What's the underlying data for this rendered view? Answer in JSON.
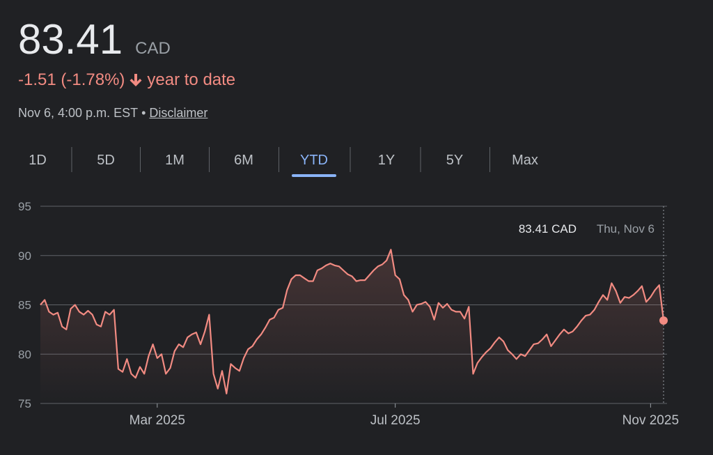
{
  "header": {
    "price": "83.41",
    "currency": "CAD",
    "change": "-1.51 (-1.78%)",
    "period": "year to date",
    "timestamp": "Nov 6, 4:00 p.m. EST",
    "separator": "•",
    "disclaimer": "Disclaimer"
  },
  "tabs": {
    "items": [
      "1D",
      "5D",
      "1M",
      "6M",
      "YTD",
      "1Y",
      "5Y",
      "Max"
    ],
    "active": 4
  },
  "chart_data": {
    "type": "line",
    "color": "#f28b82",
    "values": [
      85,
      85.5,
      84.3,
      84,
      84.2,
      82.8,
      82.5,
      84.6,
      85,
      84.3,
      84,
      84.4,
      84,
      83,
      82.8,
      84.3,
      84,
      84.5,
      78.5,
      78.2,
      79.5,
      78,
      77.6,
      78.7,
      78,
      79.8,
      81,
      79.6,
      80,
      78,
      78.6,
      80.3,
      81,
      80.7,
      81.7,
      82,
      82.2,
      81,
      82.3,
      84,
      78,
      76.5,
      78.3,
      76,
      79,
      78.6,
      78.3,
      79.6,
      80.5,
      80.8,
      81.5,
      82,
      82.7,
      83.5,
      83.7,
      84.5,
      84.7,
      86.5,
      87.6,
      88,
      88,
      87.7,
      87.4,
      87.4,
      88.5,
      88.7,
      89,
      89.2,
      89,
      88.9,
      88.5,
      88.1,
      87.9,
      87.4,
      87.5,
      87.5,
      88,
      88.5,
      88.9,
      89.1,
      89.5,
      90.6,
      88,
      87.6,
      86,
      85.5,
      84.3,
      85,
      85.1,
      85.3,
      84.8,
      83.5,
      85.2,
      84.7,
      85.1,
      84.5,
      84.3,
      84.3,
      83.6,
      84.8,
      78,
      79.1,
      79.7,
      80.2,
      80.6,
      81.2,
      81.7,
      81.3,
      80.4,
      80,
      79.5,
      80,
      79.8,
      80.4,
      81,
      81.1,
      81.5,
      82,
      80.8,
      81.4,
      82,
      82.5,
      82.1,
      82.3,
      82.8,
      83.4,
      83.9,
      84,
      84.5,
      85.3,
      86,
      85.5,
      87.2,
      86.4,
      85.2,
      85.8,
      85.7,
      86,
      86.4,
      86.9,
      85.3,
      85.8,
      86.5,
      87,
      83.41
    ],
    "xlim": [
      0,
      144
    ],
    "xticks": [
      {
        "value": 27,
        "label": "Mar 2025"
      },
      {
        "value": 82,
        "label": "Jul 2025"
      },
      {
        "value": 141,
        "label": "Nov 2025"
      }
    ],
    "ylim": [
      75,
      95
    ],
    "yticks": [
      75,
      80,
      85,
      90,
      95
    ],
    "grid": true,
    "tooltip": {
      "value_label": "83.41 CAD",
      "date": "Thu, Nov 6"
    }
  }
}
